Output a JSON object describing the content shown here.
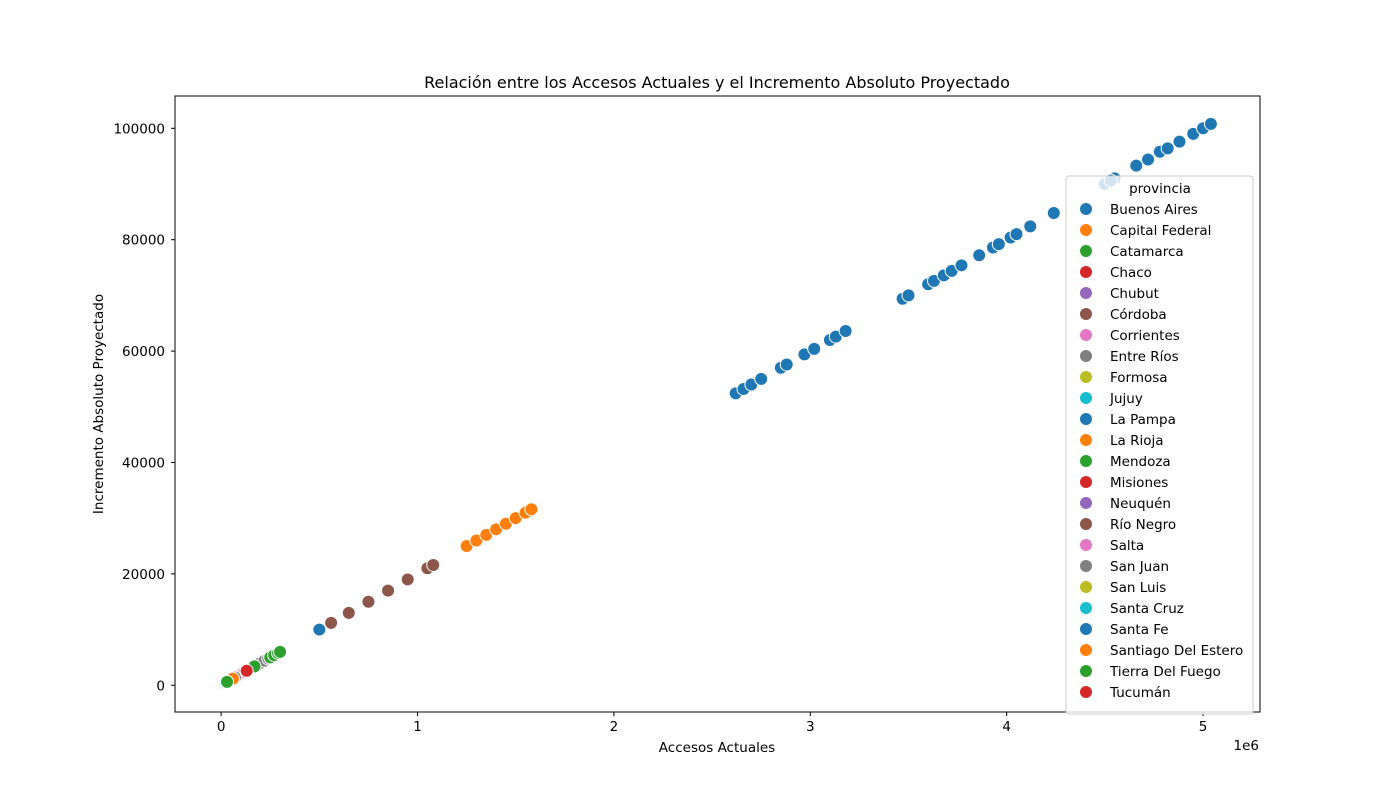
{
  "chart_data": {
    "type": "scatter",
    "title": "Relación entre los Accesos Actuales y el Incremento Absoluto Proyectado",
    "xlabel": "Accesos Actuales",
    "ylabel": "Incremento Absoluto Proyectado",
    "x_offset_label": "1e6",
    "xlim": [
      -235000,
      5290000
    ],
    "ylim": [
      -4800,
      105800
    ],
    "x_ticks": [
      0,
      1000000,
      2000000,
      3000000,
      4000000,
      5000000
    ],
    "x_tick_labels": [
      "0",
      "1",
      "2",
      "3",
      "4",
      "5"
    ],
    "y_ticks": [
      0,
      20000,
      40000,
      60000,
      80000,
      100000
    ],
    "y_tick_labels": [
      "0",
      "20000",
      "40000",
      "60000",
      "80000",
      "100000"
    ],
    "grid": false,
    "legend": {
      "title": "provincia",
      "placement": "right"
    },
    "series": [
      {
        "name": "Buenos Aires",
        "color": "#1f77b4",
        "points": [
          [
            4500000,
            90000
          ],
          [
            4550000,
            91000
          ],
          [
            4530000,
            90600
          ],
          [
            4660000,
            93300
          ],
          [
            4720000,
            94400
          ],
          [
            4780000,
            95800
          ],
          [
            4820000,
            96400
          ],
          [
            4880000,
            97600
          ],
          [
            4950000,
            99000
          ],
          [
            5000000,
            100000
          ],
          [
            5040000,
            100800
          ]
        ]
      },
      {
        "name": "Capital Federal",
        "color": "#ff7f0e",
        "points": [
          [
            1250000,
            25000
          ],
          [
            1300000,
            26000
          ],
          [
            1350000,
            27000
          ],
          [
            1400000,
            28000
          ],
          [
            1450000,
            29000
          ],
          [
            1500000,
            30000
          ],
          [
            1550000,
            31000
          ],
          [
            1580000,
            31600
          ]
        ]
      },
      {
        "name": "Catamarca",
        "color": "#2ca02c",
        "points": [
          [
            20000,
            400
          ],
          [
            30000,
            600
          ],
          [
            40000,
            800
          ]
        ]
      },
      {
        "name": "Chaco",
        "color": "#d62728",
        "points": [
          [
            100000,
            2000
          ],
          [
            120000,
            2400
          ],
          [
            130000,
            2600
          ]
        ]
      },
      {
        "name": "Chubut",
        "color": "#9467bd",
        "points": [
          [
            70000,
            1400
          ],
          [
            80000,
            1600
          ],
          [
            90000,
            1800
          ]
        ]
      },
      {
        "name": "Córdoba",
        "color": "#8c564b",
        "points": [
          [
            560000,
            11200
          ],
          [
            650000,
            13000
          ],
          [
            750000,
            15000
          ],
          [
            850000,
            17000
          ],
          [
            950000,
            19000
          ],
          [
            1050000,
            21000
          ],
          [
            1080000,
            21600
          ]
        ]
      },
      {
        "name": "Corrientes",
        "color": "#e377c2",
        "points": [
          [
            80000,
            1600
          ],
          [
            90000,
            1800
          ],
          [
            100000,
            2000
          ]
        ]
      },
      {
        "name": "Entre Ríos",
        "color": "#7f7f7f",
        "points": [
          [
            200000,
            4000
          ],
          [
            220000,
            4400
          ],
          [
            240000,
            4800
          ]
        ]
      },
      {
        "name": "Formosa",
        "color": "#bcbd22",
        "points": [
          [
            10000,
            200
          ],
          [
            15000,
            300
          ],
          [
            20000,
            400
          ]
        ]
      },
      {
        "name": "Jujuy",
        "color": "#17becf",
        "points": [
          [
            40000,
            800
          ],
          [
            50000,
            1000
          ],
          [
            60000,
            1200
          ]
        ]
      },
      {
        "name": "La Pampa",
        "color": "#1f77b4",
        "points": [
          [
            30000,
            600
          ],
          [
            40000,
            800
          ]
        ]
      },
      {
        "name": "La Rioja",
        "color": "#ff7f0e",
        "points": [
          [
            20000,
            400
          ],
          [
            30000,
            600
          ]
        ]
      },
      {
        "name": "Mendoza",
        "color": "#2ca02c",
        "points": [
          [
            250000,
            5000
          ],
          [
            270000,
            5400
          ],
          [
            290000,
            5800
          ],
          [
            300000,
            6000
          ]
        ]
      },
      {
        "name": "Misiones",
        "color": "#d62728",
        "points": [
          [
            110000,
            2200
          ],
          [
            120000,
            2400
          ]
        ]
      },
      {
        "name": "Neuquén",
        "color": "#9467bd",
        "points": [
          [
            90000,
            1800
          ],
          [
            100000,
            2000
          ]
        ]
      },
      {
        "name": "Río Negro",
        "color": "#8c564b",
        "points": [
          [
            80000,
            1600
          ],
          [
            90000,
            1800
          ]
        ]
      },
      {
        "name": "Salta",
        "color": "#e377c2",
        "points": [
          [
            70000,
            1400
          ],
          [
            80000,
            1600
          ]
        ]
      },
      {
        "name": "San Juan",
        "color": "#7f7f7f",
        "points": [
          [
            60000,
            1200
          ],
          [
            70000,
            1400
          ]
        ]
      },
      {
        "name": "San Luis",
        "color": "#bcbd22",
        "points": [
          [
            30000,
            600
          ],
          [
            40000,
            800
          ]
        ]
      },
      {
        "name": "Santa Cruz",
        "color": "#17becf",
        "points": [
          [
            20000,
            400
          ],
          [
            25000,
            500
          ]
        ]
      },
      {
        "name": "Santa Fe",
        "color": "#1f77b4",
        "points": [
          [
            500000,
            10000
          ],
          [
            2620000,
            52400
          ],
          [
            2660000,
            53200
          ],
          [
            2700000,
            54000
          ],
          [
            2750000,
            55000
          ],
          [
            2850000,
            57000
          ],
          [
            2880000,
            57600
          ],
          [
            2970000,
            59400
          ],
          [
            3020000,
            60400
          ],
          [
            3100000,
            62000
          ],
          [
            3130000,
            62600
          ],
          [
            3180000,
            63600
          ],
          [
            3470000,
            69400
          ],
          [
            3500000,
            70000
          ],
          [
            3600000,
            72000
          ],
          [
            3630000,
            72600
          ],
          [
            3680000,
            73600
          ],
          [
            3720000,
            74400
          ],
          [
            3770000,
            75400
          ],
          [
            3860000,
            77200
          ],
          [
            3930000,
            78600
          ],
          [
            3960000,
            79200
          ],
          [
            4020000,
            80400
          ],
          [
            4050000,
            81000
          ],
          [
            4120000,
            82400
          ],
          [
            4240000,
            84800
          ]
        ]
      },
      {
        "name": "Santiago Del Estero",
        "color": "#ff7f0e",
        "points": [
          [
            50000,
            1000
          ],
          [
            60000,
            1200
          ]
        ]
      },
      {
        "name": "Tierra Del Fuego",
        "color": "#2ca02c",
        "points": [
          [
            30000,
            600
          ],
          [
            170000,
            3400
          ]
        ]
      },
      {
        "name": "Tucumán",
        "color": "#d62728",
        "points": [
          [
            130000,
            2600
          ]
        ]
      }
    ]
  }
}
